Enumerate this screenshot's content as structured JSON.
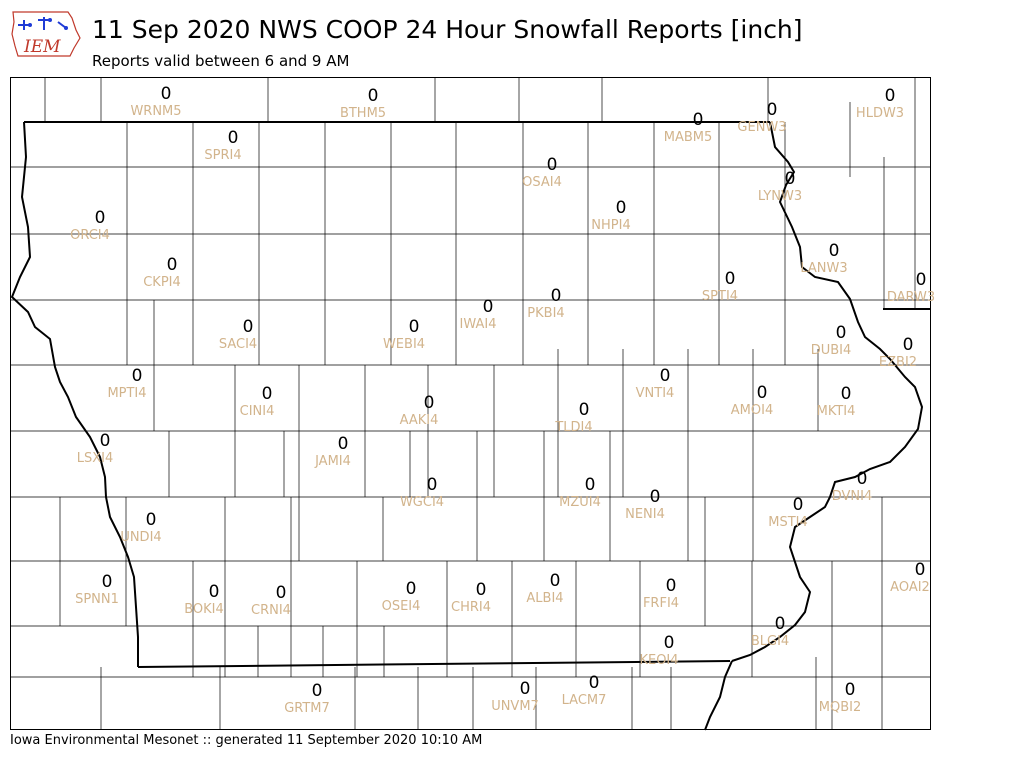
{
  "header": {
    "title": "11 Sep 2020 NWS COOP 24 Hour Snowfall Reports [inch]",
    "subtitle": "Reports valid between 6 and 9 AM",
    "logo_text": "IEM"
  },
  "footer": {
    "text": "Iowa Environmental Mesonet :: generated 11 September 2020 10:10 AM"
  },
  "colors": {
    "value": "#000000",
    "station_id": "#d2b48c",
    "logo": "#c0392b"
  },
  "stations": [
    {
      "id": "WRNM5",
      "value": "0"
    },
    {
      "id": "BTHM5",
      "value": "0"
    },
    {
      "id": "MABM5",
      "value": "0"
    },
    {
      "id": "GENW3",
      "value": "0"
    },
    {
      "id": "HLDW3",
      "value": "0"
    },
    {
      "id": "SPRI4",
      "value": "0"
    },
    {
      "id": "OSAI4",
      "value": "0"
    },
    {
      "id": "LYNW3",
      "value": "0"
    },
    {
      "id": "ORCI4",
      "value": "0"
    },
    {
      "id": "NHPI4",
      "value": "0"
    },
    {
      "id": "CKPI4",
      "value": "0"
    },
    {
      "id": "LANW3",
      "value": "0"
    },
    {
      "id": "SPTI4",
      "value": "0"
    },
    {
      "id": "DARW3",
      "value": "0"
    },
    {
      "id": "IWAI4",
      "value": "0"
    },
    {
      "id": "PKBI4",
      "value": "0"
    },
    {
      "id": "WEBI4",
      "value": "0"
    },
    {
      "id": "SACI4",
      "value": "0"
    },
    {
      "id": "DUBI4",
      "value": "0"
    },
    {
      "id": "EZBI2",
      "value": "0"
    },
    {
      "id": "MPTI4",
      "value": "0"
    },
    {
      "id": "VNTI4",
      "value": "0"
    },
    {
      "id": "CINI4",
      "value": "0"
    },
    {
      "id": "AMOI4",
      "value": "0"
    },
    {
      "id": "MKTI4",
      "value": "0"
    },
    {
      "id": "AAKI4",
      "value": "0"
    },
    {
      "id": "TLDI4",
      "value": "0"
    },
    {
      "id": "LSXI4",
      "value": "0"
    },
    {
      "id": "JAMI4",
      "value": "0"
    },
    {
      "id": "DVNI4",
      "value": "0"
    },
    {
      "id": "WGCI4",
      "value": "0"
    },
    {
      "id": "MZUI4",
      "value": "0"
    },
    {
      "id": "NENI4",
      "value": "0"
    },
    {
      "id": "MSTI4",
      "value": "0"
    },
    {
      "id": "UNDI4",
      "value": "0"
    },
    {
      "id": "AOAI2",
      "value": "0"
    },
    {
      "id": "SPNN1",
      "value": "0"
    },
    {
      "id": "BOKI4",
      "value": "0"
    },
    {
      "id": "CRNI4",
      "value": "0"
    },
    {
      "id": "OSEI4",
      "value": "0"
    },
    {
      "id": "CHRI4",
      "value": "0"
    },
    {
      "id": "ALBI4",
      "value": "0"
    },
    {
      "id": "FRFI4",
      "value": "0"
    },
    {
      "id": "BLGI4",
      "value": "0"
    },
    {
      "id": "KEOI4",
      "value": "0"
    },
    {
      "id": "GRTM7",
      "value": "0"
    },
    {
      "id": "UNVM7",
      "value": "0"
    },
    {
      "id": "LACM7",
      "value": "0"
    },
    {
      "id": "MQBI2",
      "value": "0"
    }
  ]
}
